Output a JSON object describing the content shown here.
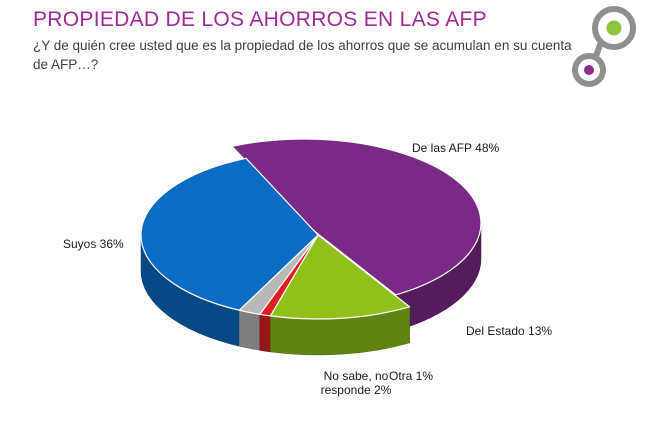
{
  "header": {
    "title": "PROPIEDAD DE LOS AHORROS EN LAS AFP",
    "subtitle": "¿Y de quién cree usted que es la propiedad de los ahorros que se acumulan en su cuenta de AFP…?"
  },
  "colors": {
    "title": "#9e2a97",
    "logo_grey": "#8f8f8f",
    "logo_green": "#8cc63f",
    "logo_purple": "#8b2d8b"
  },
  "chart_data": {
    "type": "pie",
    "style": "3d",
    "title": "PROPIEDAD DE LOS AHORROS EN LAS AFP",
    "slices": [
      {
        "name": "De las AFP",
        "value": 48,
        "label": "De las AFP 48%",
        "color": "#7a2a86"
      },
      {
        "name": "Del Estado",
        "value": 13,
        "label": "Del Estado 13%",
        "color": "#8fc11a"
      },
      {
        "name": "Otra",
        "value": 1,
        "label": "Otra 1%",
        "color": "#e02020"
      },
      {
        "name": "No sabe, no responde",
        "value": 2,
        "label_lines": [
          "No sabe, no",
          "responde 2%"
        ],
        "color": "#b9b9b9"
      },
      {
        "name": "Suyos",
        "value": 36,
        "label": "Suyos 36%",
        "color": "#0b6cc4"
      }
    ]
  }
}
